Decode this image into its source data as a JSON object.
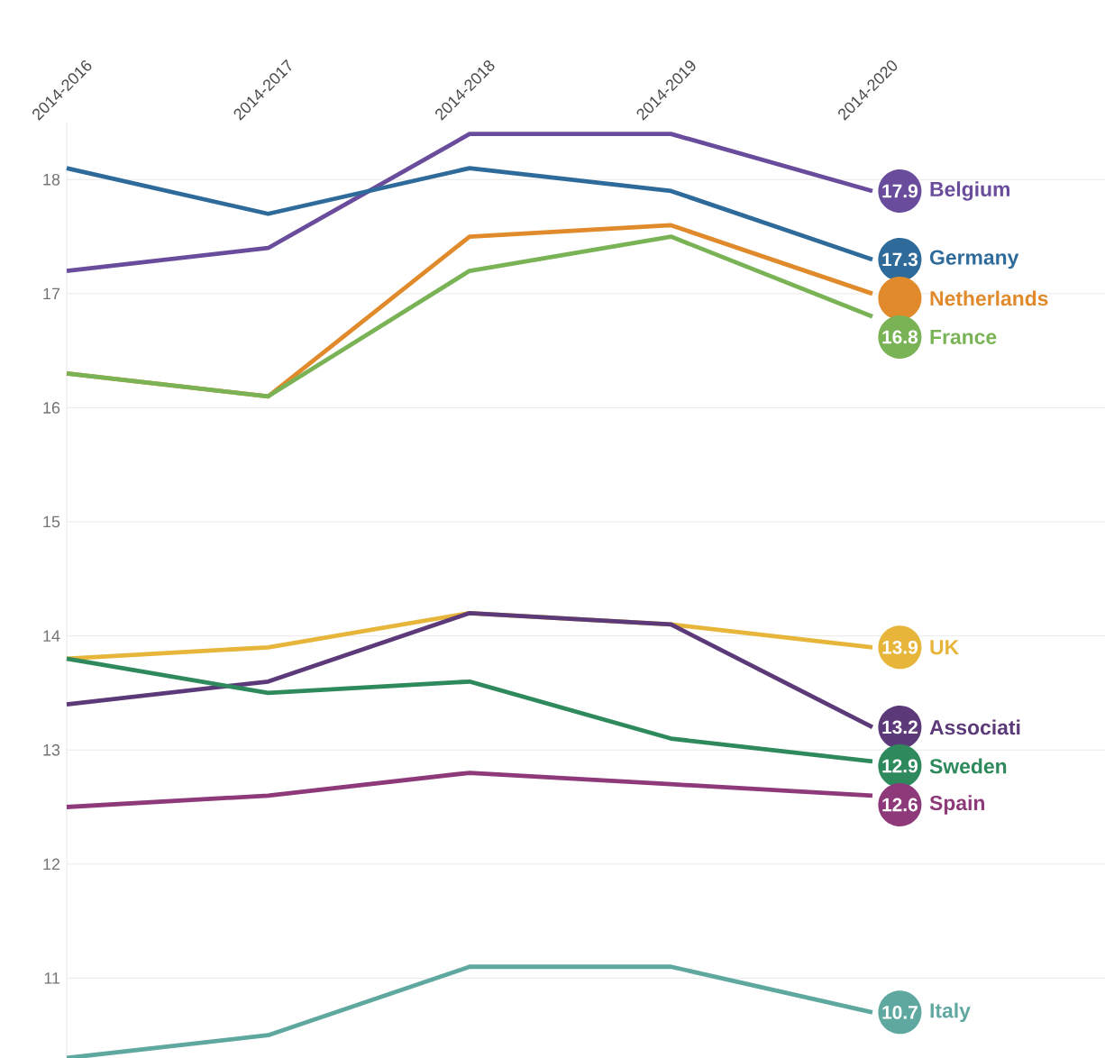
{
  "chart_data": {
    "type": "line",
    "categories": [
      "2014-2016",
      "2014-2017",
      "2014-2018",
      "2014-2019",
      "2014-2020"
    ],
    "ylim": [
      10.3,
      18.5
    ],
    "yticks": [
      11,
      12,
      13,
      14,
      15,
      16,
      17,
      18
    ],
    "grid": "y",
    "legend": "right",
    "line_style": "solid",
    "series": [
      {
        "name": "Belgium",
        "color": "#6a4c9c",
        "values": [
          17.2,
          17.4,
          18.4,
          18.4,
          17.9
        ],
        "value_labels": [
          null,
          null,
          null,
          null,
          "17.9"
        ]
      },
      {
        "name": "Germany",
        "color": "#2f6b9a",
        "values": [
          18.1,
          17.7,
          18.1,
          17.9,
          17.3
        ],
        "value_labels": [
          null,
          null,
          null,
          null,
          "17.3"
        ]
      },
      {
        "name": "Netherlands",
        "color": "#e08a2b",
        "values": [
          16.3,
          16.1,
          17.5,
          17.6,
          17.0
        ]
      },
      {
        "name": "France",
        "color": "#7ab356",
        "values": [
          16.3,
          16.1,
          17.2,
          17.5,
          16.8
        ],
        "value_labels": [
          null,
          null,
          null,
          null,
          "16.8"
        ]
      },
      {
        "name": "UK",
        "color": "#e6b53a",
        "values": [
          13.8,
          13.9,
          14.2,
          14.1,
          13.9
        ],
        "value_labels": [
          null,
          null,
          null,
          null,
          "13.9"
        ]
      },
      {
        "name": "Associati",
        "color": "#5c3a7a",
        "values": [
          13.4,
          13.6,
          14.2,
          14.1,
          13.2
        ],
        "value_labels": [
          null,
          null,
          null,
          null,
          "13.2"
        ]
      },
      {
        "name": "Sweden",
        "color": "#2e8a5c",
        "values": [
          13.8,
          13.5,
          13.6,
          13.1,
          12.9
        ],
        "value_labels": [
          null,
          null,
          null,
          null,
          "12.9"
        ]
      },
      {
        "name": "Spain",
        "color": "#8e3a7a",
        "values": [
          12.5,
          12.6,
          12.8,
          12.7,
          12.6
        ],
        "value_labels": [
          null,
          null,
          null,
          null,
          "12.6"
        ]
      },
      {
        "name": "Italy",
        "color": "#5fa8a0",
        "values": [
          10.3,
          10.5,
          11.1,
          11.1,
          10.7
        ],
        "value_labels": [
          null,
          null,
          null,
          null,
          "10.7"
        ]
      }
    ]
  }
}
